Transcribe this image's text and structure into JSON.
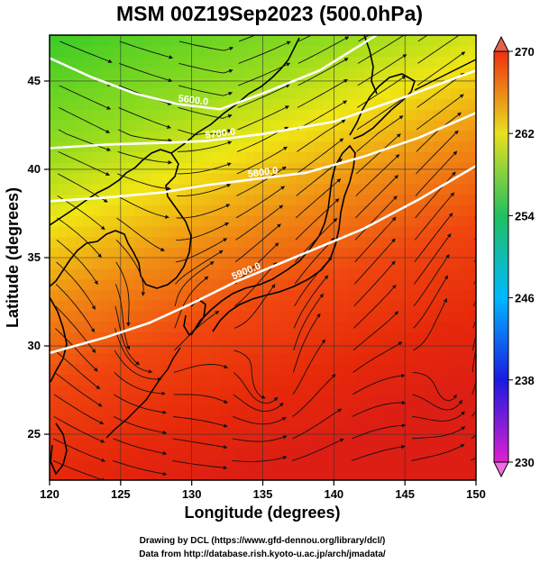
{
  "chart_data": {
    "type": "heatmap",
    "title": "MSM 00Z19Sep2023 (500.0hPa)",
    "xlabel": "Longitude (degrees)",
    "ylabel": "Latitude  (degrees)",
    "xlim": [
      120,
      150
    ],
    "ylim": [
      22.4,
      47.6
    ],
    "x_ticks": [
      120,
      125,
      130,
      135,
      140,
      145,
      150
    ],
    "y_ticks": [
      25,
      30,
      35,
      40,
      45
    ],
    "grid": true,
    "colorbar": {
      "ticks": [
        230,
        238,
        246,
        254,
        262,
        270
      ],
      "range": [
        230,
        270
      ],
      "colors": [
        "#e020d0",
        "#1a1ae0",
        "#00b8ff",
        "#20c060",
        "#e8e020",
        "#f03010"
      ]
    },
    "contours": [
      {
        "label": "5600.0",
        "points": [
          [
            120,
            46.3
          ],
          [
            123,
            45.2
          ],
          [
            126,
            44.3
          ],
          [
            129,
            43.7
          ],
          [
            132,
            43.4
          ],
          [
            135,
            44.3
          ],
          [
            139,
            45.6
          ],
          [
            143,
            47.6
          ]
        ]
      },
      {
        "label": "5700.0",
        "points": [
          [
            120,
            41.2
          ],
          [
            124,
            41.4
          ],
          [
            128,
            41.5
          ],
          [
            131,
            41.6
          ],
          [
            135,
            42.0
          ],
          [
            140,
            42.7
          ],
          [
            145,
            44.1
          ],
          [
            150,
            45.6
          ]
        ]
      },
      {
        "label": "5800.0",
        "points": [
          [
            120,
            38.2
          ],
          [
            124,
            38.4
          ],
          [
            128,
            38.7
          ],
          [
            131,
            39.1
          ],
          [
            134,
            39.4
          ],
          [
            138,
            39.8
          ],
          [
            142,
            40.7
          ],
          [
            146,
            41.8
          ],
          [
            150,
            43.2
          ]
        ]
      },
      {
        "label": "5900.0",
        "points": [
          [
            120,
            29.6
          ],
          [
            124,
            30.5
          ],
          [
            127,
            31.3
          ],
          [
            130,
            32.4
          ],
          [
            133,
            33.6
          ],
          [
            136,
            34.6
          ],
          [
            139,
            35.6
          ],
          [
            142,
            36.6
          ],
          [
            146,
            38.3
          ],
          [
            150,
            40.2
          ]
        ]
      }
    ],
    "vortices": [
      {
        "lon": 135.2,
        "lat": 27.3
      },
      {
        "lon": 126.8,
        "lat": 30.0
      },
      {
        "lon": 148.2,
        "lat": 27.0
      }
    ]
  },
  "credits": {
    "line1": "Drawing by DCL (https://www.gfd-dennou.org/library/dcl/)",
    "line2": "Data from http://database.rish.kyoto-u.ac.jp/arch/jmadata/"
  }
}
